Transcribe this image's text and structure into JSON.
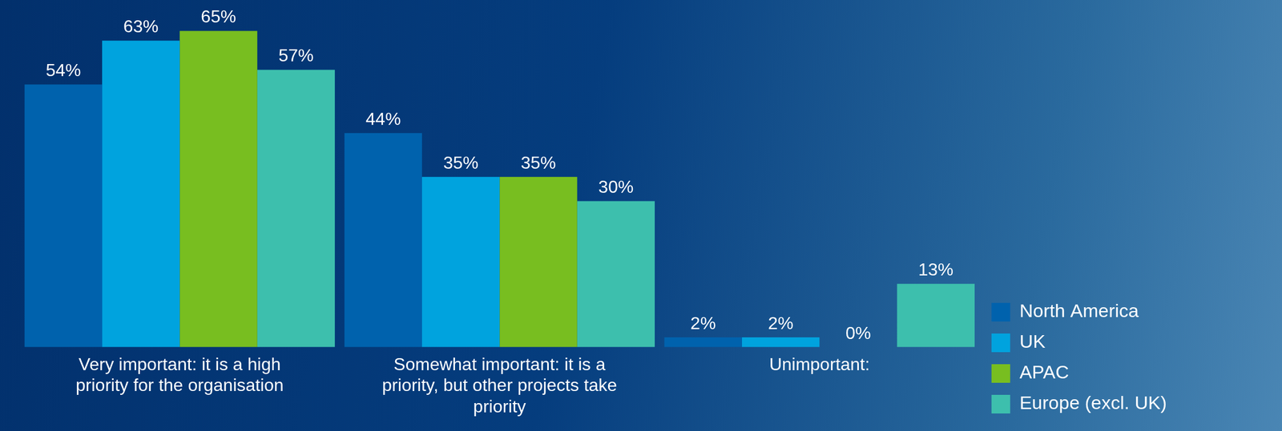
{
  "chart_data": {
    "type": "bar",
    "categories": [
      "Very important: it is a high priority for the organisation",
      "Somewhat important: it is a priority, but other projects take priority",
      "Unimportant:"
    ],
    "series": [
      {
        "name": "North America",
        "color": "#0062ad",
        "values": [
          54,
          44,
          2
        ],
        "value_labels": [
          "54%",
          "44%",
          "2%"
        ]
      },
      {
        "name": "UK",
        "color": "#00a3de",
        "values": [
          63,
          35,
          2
        ],
        "value_labels": [
          "63%",
          "35%",
          "2%"
        ]
      },
      {
        "name": "APAC",
        "color": "#78be20",
        "values": [
          65,
          35,
          0
        ],
        "value_labels": [
          "65%",
          "35%",
          "0%"
        ]
      },
      {
        "name": "Europe (excl. UK)",
        "color": "#3dbfad",
        "values": [
          57,
          30,
          13
        ],
        "value_labels": [
          "57%",
          "30%",
          "13%"
        ]
      }
    ],
    "ylim": [
      0,
      70
    ],
    "grid": false,
    "legend": "right",
    "data_labels": true,
    "tick_labels": "x"
  }
}
